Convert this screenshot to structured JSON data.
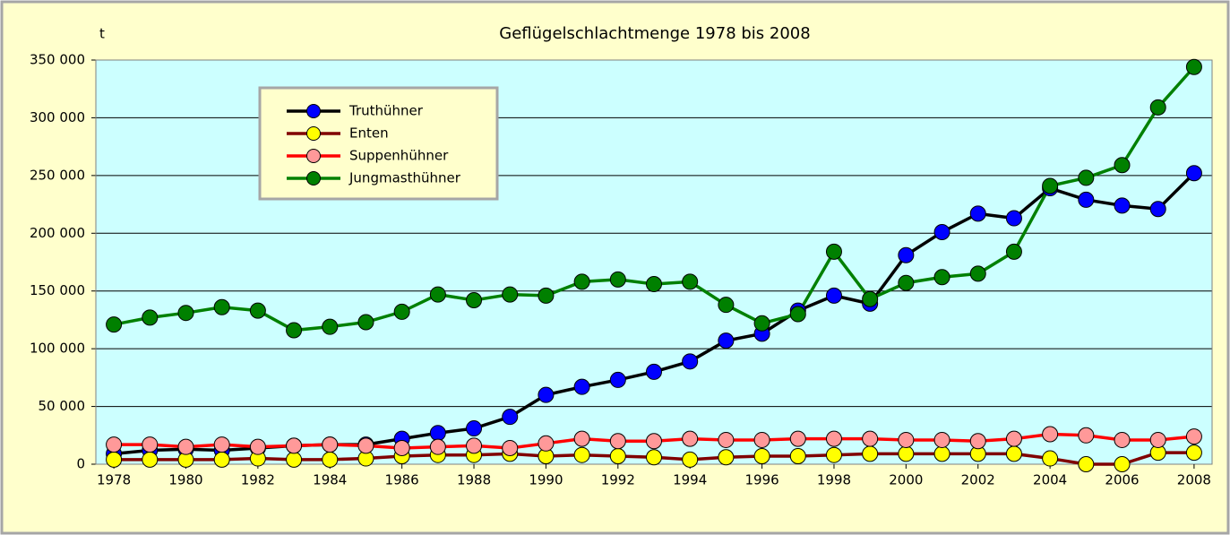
{
  "chart_data": {
    "type": "line",
    "title": "Geflügelschlachtmenge 1978 bis 2008",
    "y_label": "t",
    "x": [
      1978,
      1979,
      1980,
      1981,
      1982,
      1983,
      1984,
      1985,
      1986,
      1987,
      1988,
      1989,
      1990,
      1991,
      1992,
      1993,
      1994,
      1995,
      1996,
      1997,
      1998,
      1999,
      2000,
      2001,
      2002,
      2003,
      2004,
      2005,
      2006,
      2007,
      2008
    ],
    "xlim": [
      1977.5,
      2008.5
    ],
    "xticks": [
      1978,
      1980,
      1982,
      1984,
      1986,
      1988,
      1990,
      1992,
      1994,
      1996,
      1998,
      2000,
      2002,
      2004,
      2006,
      2008
    ],
    "ylim": [
      0,
      350000
    ],
    "yticks": [
      0,
      {
        "value": 50000,
        "label": "50 000"
      },
      {
        "value": 100000,
        "label": "100 000"
      },
      {
        "value": 150000,
        "label": "150 000"
      },
      {
        "value": 200000,
        "label": "200 000"
      },
      {
        "value": 250000,
        "label": "250 000"
      },
      {
        "value": 300000,
        "label": "300 000"
      },
      {
        "value": 350000,
        "label": "350 000"
      }
    ],
    "grid": true,
    "legend": "upper left",
    "series": [
      {
        "name": "Truthühner",
        "color": "#000000",
        "marker_color": "#0000ff",
        "values": [
          9000,
          12000,
          13000,
          12000,
          14000,
          16000,
          17000,
          17000,
          22000,
          27000,
          31000,
          41000,
          60000,
          67000,
          73000,
          80000,
          89000,
          107000,
          113000,
          133000,
          146000,
          139000,
          181000,
          201000,
          217000,
          213000,
          239000,
          229000,
          224000,
          221000,
          252000
        ]
      },
      {
        "name": "Enten",
        "color": "#800000",
        "marker_color": "#ffff00",
        "values": [
          4000,
          4000,
          4000,
          4000,
          5000,
          4000,
          4000,
          5000,
          7000,
          8000,
          8000,
          9000,
          7000,
          8000,
          7000,
          6000,
          4000,
          6000,
          7000,
          7000,
          8000,
          9000,
          9000,
          9000,
          9000,
          9000,
          5000,
          0,
          0,
          10000,
          10000
        ]
      },
      {
        "name": "Suppenhühner",
        "color": "#ff0000",
        "marker_color": "#ff9999",
        "values": [
          17000,
          17000,
          15000,
          17000,
          15000,
          16000,
          17000,
          16000,
          14000,
          15000,
          16000,
          14000,
          18000,
          22000,
          20000,
          20000,
          22000,
          21000,
          21000,
          22000,
          22000,
          22000,
          21000,
          21000,
          20000,
          22000,
          26000,
          25000,
          21000,
          21000,
          24000
        ]
      },
      {
        "name": "Jungmasthühner",
        "color": "#008000",
        "marker_color": "#008000",
        "values": [
          121000,
          127000,
          131000,
          136000,
          133000,
          116000,
          119000,
          123000,
          132000,
          147000,
          142000,
          147000,
          146000,
          158000,
          160000,
          156000,
          158000,
          138000,
          122000,
          130000,
          184000,
          143000,
          157000,
          162000,
          165000,
          184000,
          241000,
          248000,
          259000,
          309000,
          344000
        ]
      }
    ]
  }
}
